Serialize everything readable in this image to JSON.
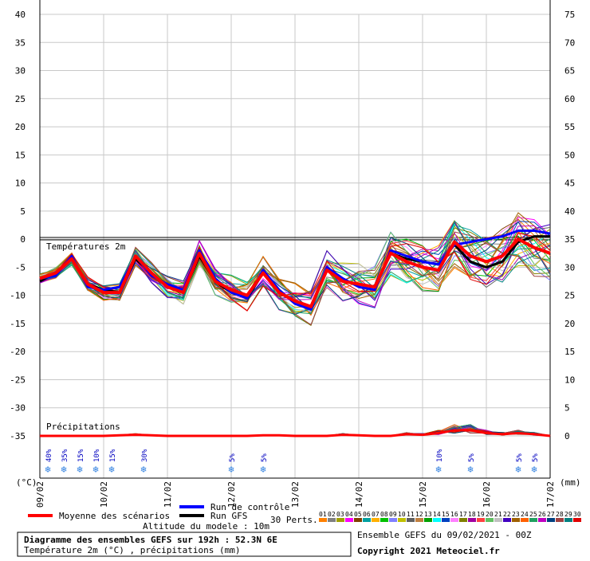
{
  "chart_data": {
    "type": "line",
    "title": "Diagramme des ensembles GEFS sur 192h : 52.3N 6E",
    "subtitle": "Température 2m (°C) , précipitations (mm)",
    "left_axis": {
      "unit": "(°C)",
      "ylim": [
        -35,
        40
      ],
      "ticks": [
        40,
        35,
        30,
        25,
        20,
        15,
        10,
        5,
        0,
        -5,
        -10,
        -15,
        -20,
        -25,
        -30,
        -35
      ]
    },
    "right_axis": {
      "unit": "(mm)",
      "ylim": [
        0,
        75
      ],
      "ticks": [
        75,
        70,
        65,
        60,
        55,
        50,
        45,
        40,
        35,
        30,
        25,
        20,
        15,
        10,
        5,
        0
      ]
    },
    "x_ticks": [
      "09/02",
      "10/02",
      "11/02",
      "12/02",
      "13/02",
      "14/02",
      "15/02",
      "16/02",
      "17/02"
    ],
    "x_range_hours": [
      0,
      192
    ],
    "temp_section_label": "Températures 2m",
    "precip_section_label": "Précipitations",
    "grid": true,
    "time_hours": [
      0,
      6,
      12,
      18,
      24,
      30,
      36,
      42,
      48,
      54,
      60,
      66,
      72,
      78,
      84,
      90,
      96,
      102,
      108,
      114,
      120,
      126,
      132,
      138,
      144,
      150,
      156,
      162,
      168,
      174,
      180,
      186,
      192
    ],
    "series": [
      {
        "name": "Moyenne des scénarios",
        "color": "#ff0000",
        "values": [
          -7,
          -6,
          -3.5,
          -8,
          -9.5,
          -9.5,
          -3,
          -6,
          -8.5,
          -9.5,
          -2.5,
          -7.5,
          -9,
          -10,
          -6,
          -9.5,
          -11,
          -12,
          -5.5,
          -7.5,
          -8,
          -8.5,
          -2.5,
          -4,
          -5,
          -5.5,
          -0.5,
          -3,
          -4,
          -3,
          0,
          -1.5,
          -2.5
        ]
      },
      {
        "name": "Run de contrôle",
        "color": "#0000ff",
        "values": [
          -7,
          -6.5,
          -3,
          -8.5,
          -9,
          -8.5,
          -3,
          -6.5,
          -8,
          -9,
          -2,
          -7,
          -9.5,
          -10.5,
          -5.5,
          -9,
          -11.5,
          -12.5,
          -5,
          -7,
          -8.5,
          -9,
          -2,
          -3,
          -4,
          -4.5,
          -1,
          -0.5,
          0,
          0.5,
          1.5,
          1.5,
          1
        ]
      },
      {
        "name": "Run GFS",
        "color": "#000000",
        "values": [
          -7.5,
          -6,
          -3.5,
          -8,
          -9,
          -9.5,
          -3.5,
          -6,
          -8.5,
          -9.5,
          -3,
          -7.5,
          -9.5,
          -10.5,
          -6,
          -9.5,
          -11,
          -12,
          -5.5,
          -7.5,
          -8,
          -8.5,
          -2.5,
          -3.5,
          -4,
          -4.5,
          -1,
          -4,
          -5,
          -4,
          -0.5,
          0.5,
          0.5
        ]
      }
    ],
    "perturbations_label": "30 Perts.",
    "perturbation_ids": [
      "01",
      "02",
      "03",
      "04",
      "05",
      "06",
      "07",
      "08",
      "09",
      "10",
      "11",
      "12",
      "13",
      "14",
      "15",
      "16",
      "17",
      "18",
      "19",
      "20",
      "21",
      "22",
      "23",
      "24",
      "25",
      "26",
      "27",
      "28",
      "29",
      "30"
    ],
    "perturbation_colors": [
      "#ff8000",
      "#808080",
      "#a0a000",
      "#ff00ff",
      "#804000",
      "#00a0a0",
      "#ffb000",
      "#00c000",
      "#8080ff",
      "#c0c000",
      "#606060",
      "#c08040",
      "#00a000",
      "#00ffff",
      "#0040c0",
      "#ff80ff",
      "#808000",
      "#a000a0",
      "#ff4040",
      "#60c060",
      "#c0c0c0",
      "#4000c0",
      "#a06000",
      "#ff6000",
      "#20a060",
      "#c000c0",
      "#004080",
      "#a04040",
      "#008080",
      "#e00000"
    ],
    "precip_mean_mm": [
      0,
      0,
      0,
      0,
      0,
      0.1,
      0.2,
      0.1,
      0,
      0,
      0,
      0,
      0,
      0,
      0.1,
      0.1,
      0,
      0,
      0,
      0.2,
      0.1,
      0,
      0,
      0.3,
      0.2,
      0.5,
      1,
      1,
      0.5,
      0.3,
      0.5,
      0.3,
      0
    ],
    "snow_markers": [
      {
        "hour": 3,
        "pct": "40%"
      },
      {
        "hour": 9,
        "pct": "35%"
      },
      {
        "hour": 15,
        "pct": "15%"
      },
      {
        "hour": 21,
        "pct": "10%"
      },
      {
        "hour": 27,
        "pct": "15%"
      },
      {
        "hour": 39,
        "pct": "30%"
      },
      {
        "hour": 72,
        "pct": "5%"
      },
      {
        "hour": 84,
        "pct": "5%"
      },
      {
        "hour": 150,
        "pct": "10%"
      },
      {
        "hour": 162,
        "pct": "5%"
      },
      {
        "hour": 180,
        "pct": "5%"
      },
      {
        "hour": 186,
        "pct": "5%"
      }
    ]
  },
  "legend": {
    "mean_label": "Moyenne des scénarios",
    "control_label": "Run de contrôle",
    "gfs_label": "Run GFS",
    "altitude_label": "Altitude du modele : 10m"
  },
  "footer": {
    "title": "Diagramme des ensembles GEFS sur 192h : 52.3N 6E",
    "subtitle": "Température 2m (°C) , précipitations (mm)",
    "ensemble_label": "Ensemble GEFS du 09/02/2021 - 00Z",
    "copyright": "Copyright 2021 Meteociel.fr"
  }
}
